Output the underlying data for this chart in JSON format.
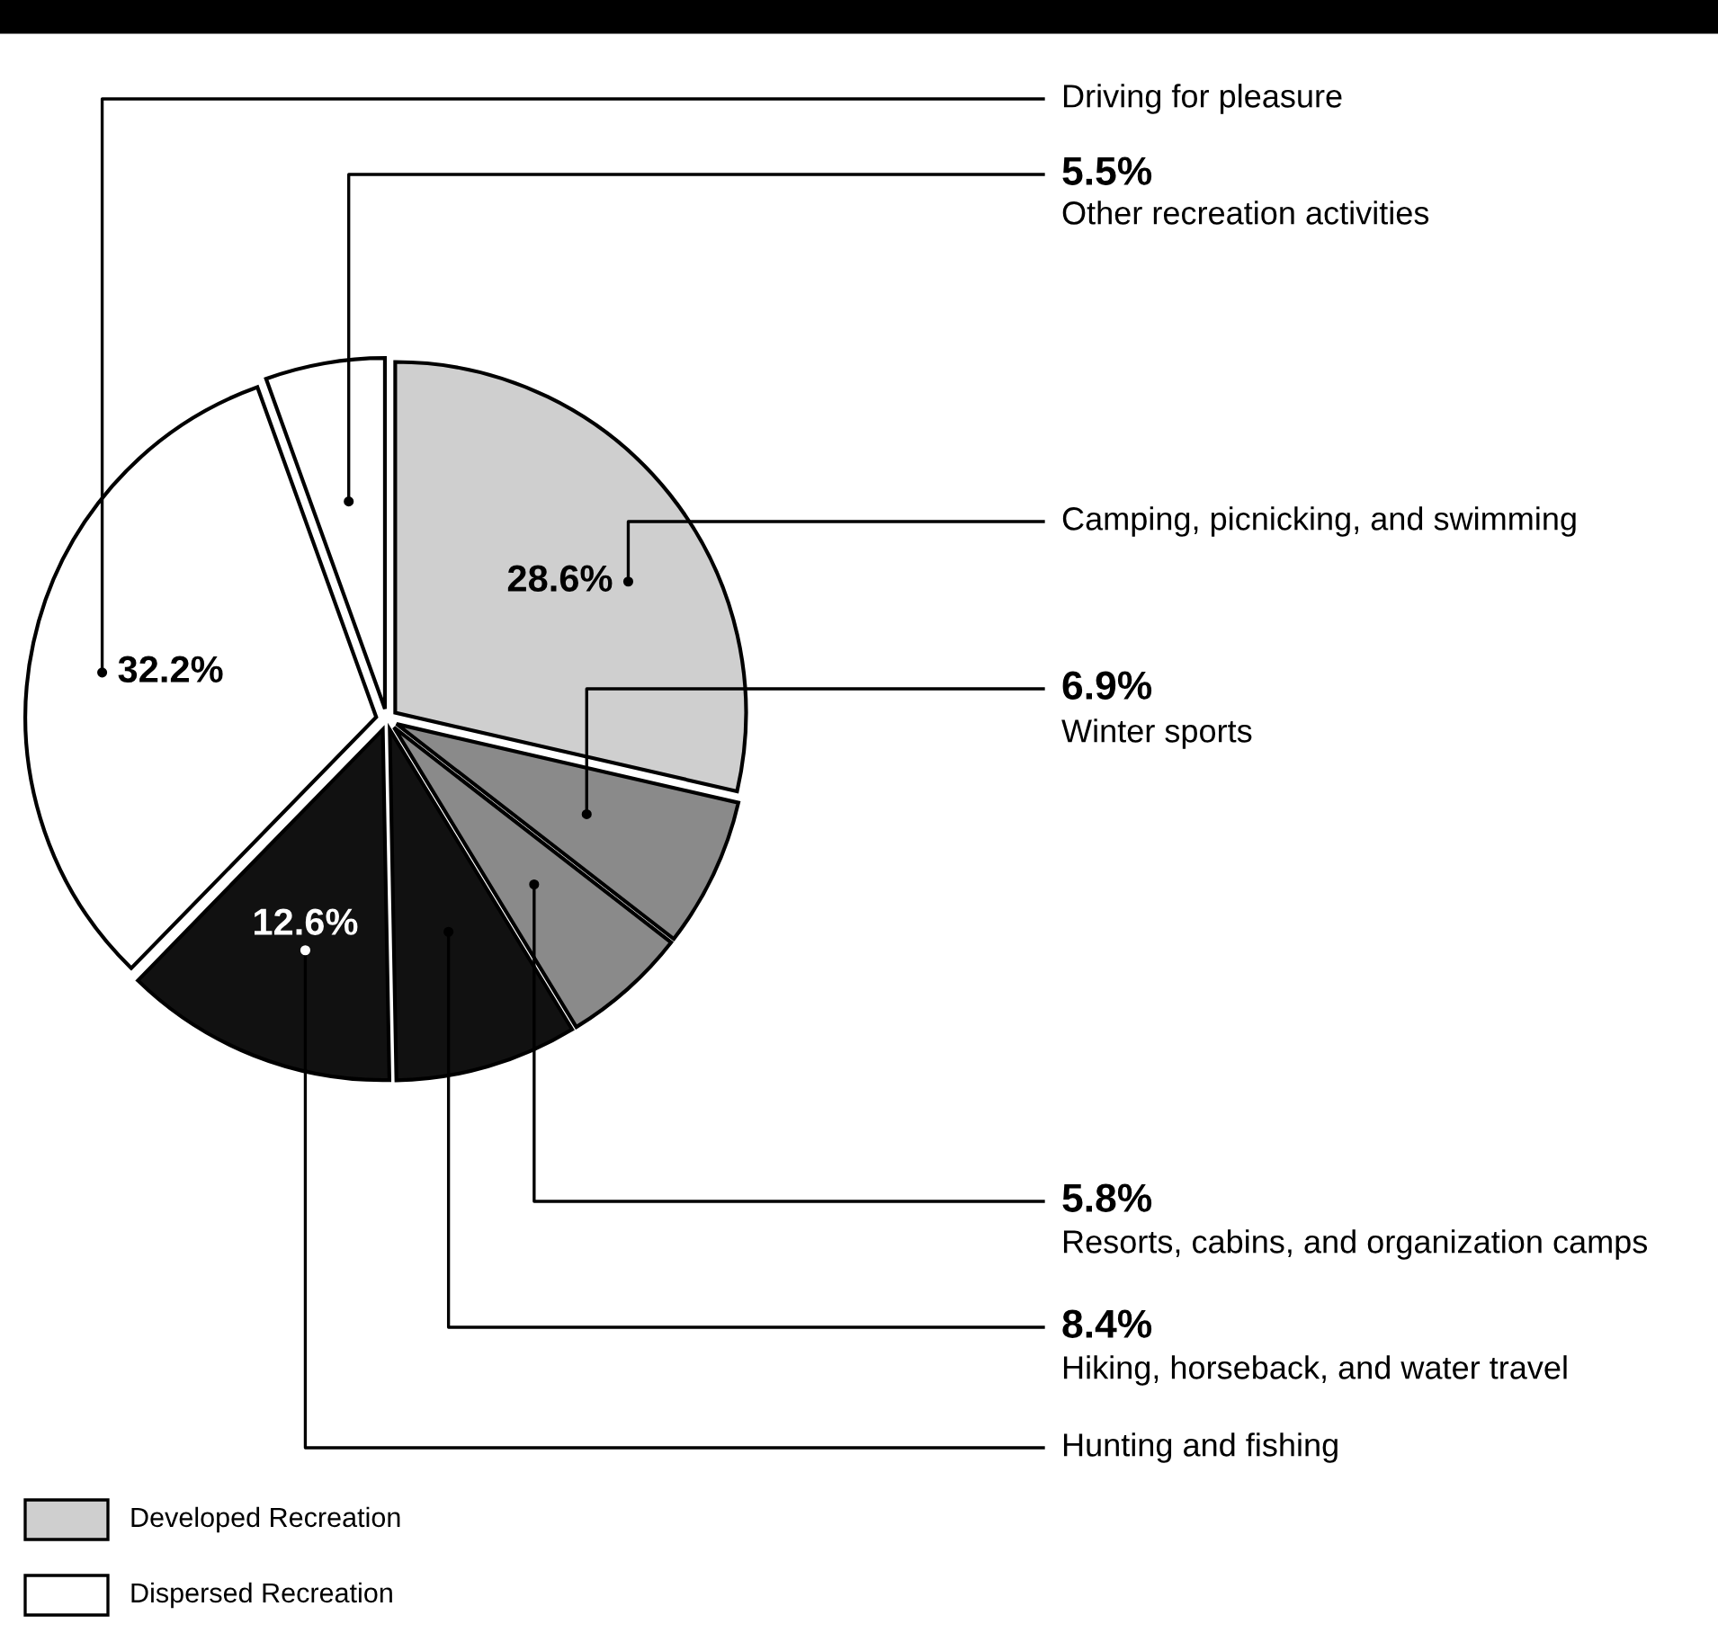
{
  "chart_data": {
    "type": "pie",
    "categories": [
      "Camping, picnicking, and swimming",
      "Winter sports",
      "Resorts, cabins, and organization camps",
      "Hiking, horseback, and water travel",
      "Hunting and fishing",
      "Driving for pleasure",
      "Other recreation activities"
    ],
    "values": [
      28.6,
      6.9,
      5.8,
      8.4,
      12.6,
      32.2,
      5.5
    ],
    "colors": [
      "#cfcfcf",
      "#8a8a8a",
      "#8a8a8a",
      "#111111",
      "#111111",
      "#ffffff",
      "#ffffff"
    ],
    "value_labels": [
      "28.6%",
      "6.9%",
      "5.8%",
      "8.4%",
      "12.6%",
      "32.2%",
      "5.5%"
    ],
    "annotations": [
      "Developed Recreation",
      "Dispersed Recreation"
    ]
  }
}
